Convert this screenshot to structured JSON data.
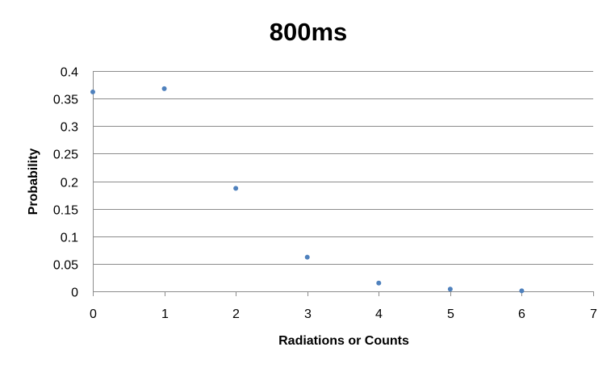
{
  "chart_data": {
    "type": "scatter",
    "title": "800ms",
    "xlabel": "Radiations  or Counts",
    "ylabel": "Probability",
    "xlim": [
      0,
      7
    ],
    "ylim": [
      0,
      0.4
    ],
    "x_ticks": [
      "0",
      "1",
      "2",
      "3",
      "4",
      "5",
      "6",
      "7"
    ],
    "y_ticks": [
      "0",
      "0.05",
      "0.1",
      "0.15",
      "0.2",
      "0.25",
      "0.3",
      "0.35",
      "0.4"
    ],
    "grid": "horizontal",
    "marker_color": "#4f81bd",
    "series": [
      {
        "x": [
          0,
          1,
          2,
          3,
          4,
          5,
          6
        ],
        "y": [
          0.362,
          0.368,
          0.187,
          0.062,
          0.015,
          0.004,
          0.001
        ]
      }
    ]
  }
}
